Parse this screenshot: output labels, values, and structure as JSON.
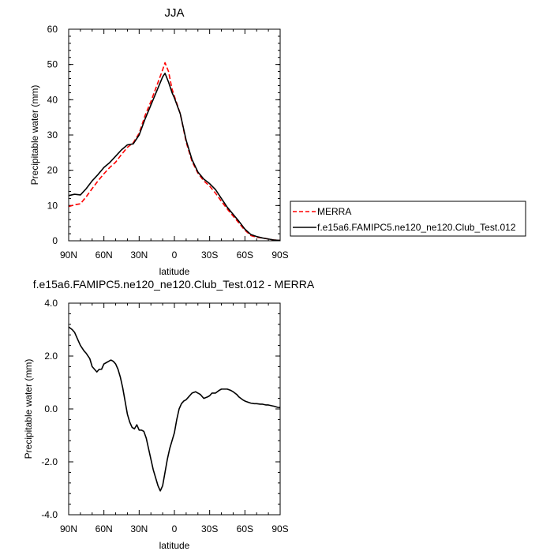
{
  "chart_data": [
    {
      "type": "line",
      "title": "JJA",
      "xlabel": "latitude",
      "ylabel": "Precipitable water (mm)",
      "xlim": [
        90,
        -90
      ],
      "ylim": [
        0,
        60
      ],
      "x_ticks": [
        90,
        60,
        30,
        0,
        -30,
        -60,
        -90
      ],
      "x_tick_labels": [
        "90N",
        "60N",
        "30N",
        "0",
        "30S",
        "60S",
        "90S"
      ],
      "y_ticks": [
        0,
        10,
        20,
        30,
        40,
        50,
        60
      ],
      "y_tick_labels": [
        "0",
        "10",
        "20",
        "30",
        "40",
        "50",
        "60"
      ],
      "legend": {
        "position": "right"
      },
      "series": [
        {
          "name": "MERRA",
          "color": "#ff0000",
          "dash": "dashed",
          "x": [
            90,
            85,
            80,
            75,
            70,
            65,
            60,
            55,
            50,
            45,
            40,
            35,
            30,
            25,
            20,
            15,
            10,
            8,
            5,
            2,
            0,
            -5,
            -10,
            -15,
            -20,
            -25,
            -30,
            -35,
            -40,
            -45,
            -50,
            -55,
            -60,
            -65,
            -70,
            -75,
            -80,
            -85,
            -90
          ],
          "values": [
            9.7,
            10.2,
            10.5,
            12.5,
            14.8,
            17.0,
            19.0,
            20.8,
            22.3,
            24.5,
            26.5,
            27.8,
            30.5,
            35.5,
            39.5,
            44.0,
            48.5,
            50.5,
            48.0,
            43.0,
            41.0,
            36.0,
            28.0,
            22.5,
            19.2,
            17.0,
            15.5,
            13.5,
            11.2,
            9.0,
            7.0,
            5.0,
            3.0,
            1.5,
            1.0,
            0.8,
            0.5,
            0.2,
            0.1
          ]
        },
        {
          "name": "f.e15a6.FAMIPC5.ne120_ne120.Club_Test.012",
          "color": "#000000",
          "dash": "solid",
          "x": [
            90,
            85,
            80,
            75,
            70,
            65,
            60,
            55,
            50,
            45,
            40,
            35,
            30,
            25,
            20,
            15,
            10,
            8,
            5,
            2,
            0,
            -5,
            -10,
            -15,
            -20,
            -25,
            -30,
            -35,
            -40,
            -45,
            -50,
            -55,
            -60,
            -65,
            -70,
            -75,
            -80,
            -85,
            -90
          ],
          "values": [
            12.8,
            13.2,
            13.0,
            14.8,
            17.0,
            18.8,
            20.8,
            22.2,
            24.0,
            25.8,
            27.2,
            27.5,
            30.0,
            34.5,
            38.5,
            42.5,
            46.5,
            47.5,
            45.0,
            42.0,
            40.5,
            36.0,
            28.5,
            23.0,
            19.5,
            17.5,
            16.2,
            14.5,
            12.0,
            9.5,
            7.5,
            5.5,
            3.3,
            1.8,
            1.2,
            0.8,
            0.5,
            0.2,
            0.1
          ]
        }
      ]
    },
    {
      "type": "line",
      "title": "f.e15a6.FAMIPC5.ne120_ne120.Club_Test.012 - MERRA",
      "xlabel": "latitude",
      "ylabel": "Precipitable water (mm)",
      "xlim": [
        90,
        -90
      ],
      "ylim": [
        -4.0,
        4.0
      ],
      "x_ticks": [
        90,
        60,
        30,
        0,
        -30,
        -60,
        -90
      ],
      "x_tick_labels": [
        "90N",
        "60N",
        "30N",
        "0",
        "30S",
        "60S",
        "90S"
      ],
      "y_ticks": [
        -4,
        -2,
        0,
        2,
        4
      ],
      "y_tick_labels": [
        "-4.0",
        "-2.0",
        "0.0",
        "2.0",
        "4.0"
      ],
      "series": [
        {
          "name": "f.e15a6.FAMIPC5.ne120_ne120.Club_Test.012 - MERRA",
          "color": "#000000",
          "dash": "solid",
          "x": [
            90,
            87,
            85,
            82,
            80,
            77,
            75,
            72,
            70,
            68,
            66,
            64,
            62,
            60,
            58,
            56,
            54,
            52,
            50,
            48,
            46,
            44,
            42,
            40,
            38,
            36,
            34,
            32,
            30,
            28,
            26,
            24,
            22,
            20,
            18,
            16,
            14,
            12,
            10,
            8,
            6,
            4,
            2,
            0,
            -2,
            -4,
            -6,
            -8,
            -10,
            -12,
            -15,
            -18,
            -20,
            -22,
            -25,
            -28,
            -30,
            -32,
            -35,
            -38,
            -40,
            -43,
            -45,
            -48,
            -50,
            -53,
            -55,
            -58,
            -60,
            -63,
            -65,
            -68,
            -70,
            -73,
            -75,
            -78,
            -80,
            -83,
            -85,
            -88,
            -90
          ],
          "values": [
            3.1,
            3.0,
            2.9,
            2.6,
            2.4,
            2.2,
            2.1,
            1.9,
            1.6,
            1.5,
            1.4,
            1.5,
            1.5,
            1.7,
            1.75,
            1.8,
            1.85,
            1.8,
            1.7,
            1.5,
            1.2,
            0.8,
            0.3,
            -0.2,
            -0.5,
            -0.7,
            -0.75,
            -0.6,
            -0.8,
            -0.8,
            -0.85,
            -1.1,
            -1.5,
            -1.9,
            -2.3,
            -2.6,
            -2.9,
            -3.1,
            -2.9,
            -2.4,
            -1.9,
            -1.5,
            -1.2,
            -0.9,
            -0.4,
            0.0,
            0.2,
            0.3,
            0.35,
            0.45,
            0.6,
            0.65,
            0.6,
            0.55,
            0.4,
            0.45,
            0.5,
            0.6,
            0.6,
            0.7,
            0.75,
            0.75,
            0.75,
            0.7,
            0.65,
            0.55,
            0.45,
            0.35,
            0.3,
            0.25,
            0.22,
            0.2,
            0.2,
            0.18,
            0.18,
            0.15,
            0.15,
            0.12,
            0.1,
            0.06,
            0.05
          ]
        }
      ]
    }
  ]
}
